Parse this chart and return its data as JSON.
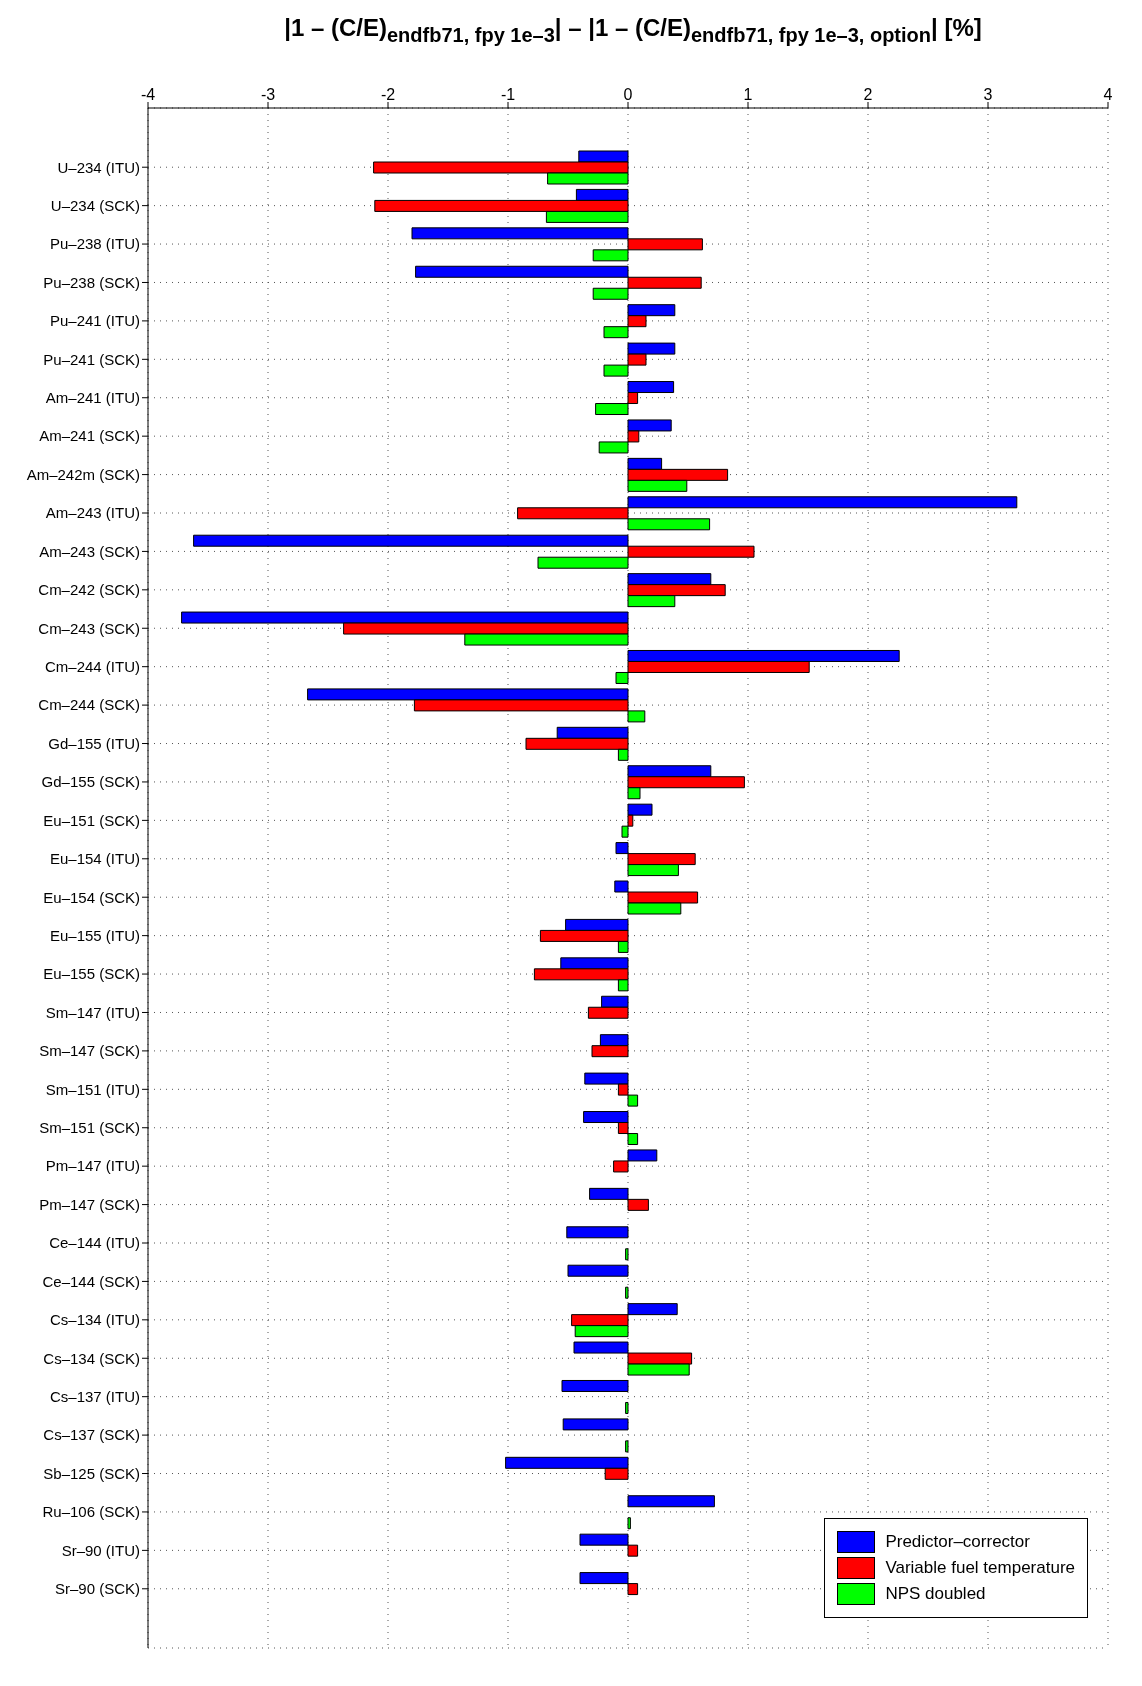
{
  "chart_data": {
    "type": "bar",
    "orientation": "horizontal",
    "xlabel": "|1 – (C/E)$_{endfb71, fpy 1e–3}$| – |1 – (C/E)$_{endfb71, fpy 1e–3, option}$| [%]",
    "categories": [
      "U–234 (ITU)",
      "U–234 (SCK)",
      "Pu–238 (ITU)",
      "Pu–238 (SCK)",
      "Pu–241 (ITU)",
      "Pu–241 (SCK)",
      "Am–241 (ITU)",
      "Am–241 (SCK)",
      "Am–242m (SCK)",
      "Am–243 (ITU)",
      "Am–243 (SCK)",
      "Cm–242 (SCK)",
      "Cm–243 (SCK)",
      "Cm–244 (ITU)",
      "Cm–244 (SCK)",
      "Gd–155 (ITU)",
      "Gd–155 (SCK)",
      "Eu–151 (SCK)",
      "Eu–154 (ITU)",
      "Eu–154 (SCK)",
      "Eu–155 (ITU)",
      "Eu–155 (SCK)",
      "Sm–147 (ITU)",
      "Sm–147 (SCK)",
      "Sm–151 (ITU)",
      "Sm–151 (SCK)",
      "Pm–147 (ITU)",
      "Pm–147 (SCK)",
      "Ce–144 (ITU)",
      "Ce–144 (SCK)",
      "Cs–134 (ITU)",
      "Cs–134 (SCK)",
      "Cs–137 (ITU)",
      "Cs–137 (SCK)",
      "Sb–125 (SCK)",
      "Ru–106 (SCK)",
      "Sr–90 (ITU)",
      "Sr–90 (SCK)"
    ],
    "series": [
      {
        "name": "Predictor–corrector",
        "color": "#0000ff",
        "values": [
          -0.41,
          -0.43,
          -1.8,
          -1.77,
          0.39,
          0.39,
          0.38,
          0.36,
          0.28,
          3.24,
          -3.62,
          0.69,
          -3.72,
          2.26,
          -2.67,
          -0.59,
          0.69,
          0.2,
          -0.1,
          -0.11,
          -0.52,
          -0.56,
          -0.22,
          -0.23,
          -0.36,
          -0.37,
          0.24,
          -0.32,
          -0.51,
          -0.5,
          0.41,
          -0.45,
          -0.55,
          -0.54,
          -1.02,
          0.72,
          -0.4,
          -0.4
        ]
      },
      {
        "name": "Variable fuel temperature",
        "color": "#ff0000",
        "values": [
          -2.12,
          -2.11,
          0.62,
          0.61,
          0.15,
          0.15,
          0.08,
          0.09,
          0.83,
          -0.92,
          1.05,
          0.81,
          -2.37,
          1.51,
          -1.78,
          -0.85,
          0.97,
          0.04,
          0.56,
          0.58,
          -0.73,
          -0.78,
          -0.33,
          -0.3,
          -0.08,
          -0.08,
          -0.12,
          0.17,
          0,
          0,
          -0.47,
          0.53,
          0,
          0,
          -0.19,
          0,
          0.08,
          0.08
        ]
      },
      {
        "name": "NPS doubled",
        "color": "#00ff00",
        "values": [
          -0.67,
          -0.68,
          -0.29,
          -0.29,
          -0.2,
          -0.2,
          -0.27,
          -0.24,
          0.49,
          0.68,
          -0.75,
          0.39,
          -1.36,
          -0.1,
          0.14,
          -0.08,
          0.1,
          -0.05,
          0.42,
          0.44,
          -0.08,
          -0.08,
          0,
          0,
          0.08,
          0.08,
          0,
          0,
          -0.02,
          -0.02,
          -0.44,
          0.51,
          -0.02,
          -0.02,
          0,
          0.02,
          0,
          0
        ]
      }
    ],
    "xlim": [
      -4,
      4
    ],
    "xticks": [
      -4,
      -3,
      -2,
      -1,
      0,
      1,
      2,
      3,
      4
    ],
    "grid": true,
    "legend": "bottom right"
  }
}
